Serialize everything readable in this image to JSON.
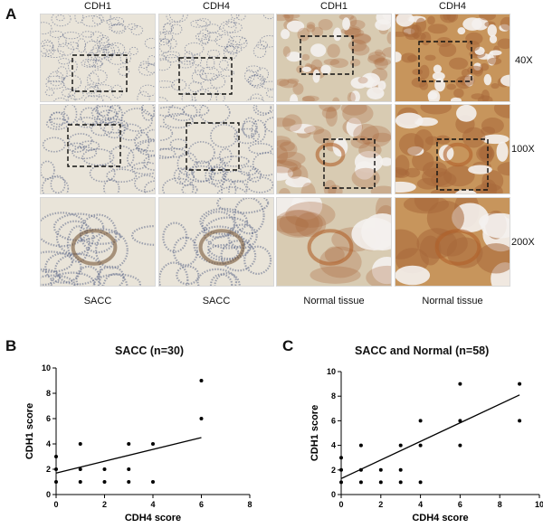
{
  "panels": {
    "a": "A",
    "b": "B",
    "c": "C"
  },
  "micrographs": {
    "columns": [
      "CDH1",
      "CDH4",
      "CDH1",
      "CDH4"
    ],
    "magnifications": [
      "40X",
      "100X",
      "200X"
    ],
    "samples": [
      "SACC",
      "SACC",
      "Normal tissue",
      "Normal tissue"
    ],
    "stain_colors": {
      "sacc_bg": "#e9e4d9",
      "sacc_cells": "#5d6888",
      "normal_cdh1_bg": "#d8cbb2",
      "normal_cdh4_bg": "#c7955c",
      "normal_cells": "#a8683a"
    }
  },
  "chart_data": [
    {
      "type": "scatter",
      "title": "SACC (n=30)",
      "xlabel": "CDH4 score",
      "ylabel": "CDH1 score",
      "xlim": [
        0,
        8
      ],
      "ylim": [
        0,
        10
      ],
      "xticks": [
        0,
        2,
        4,
        6,
        8
      ],
      "yticks": [
        0,
        2,
        4,
        6,
        8,
        10
      ],
      "points": [
        [
          0,
          1
        ],
        [
          0,
          2
        ],
        [
          0,
          3
        ],
        [
          1,
          1
        ],
        [
          1,
          2
        ],
        [
          1,
          4
        ],
        [
          2,
          1
        ],
        [
          2,
          2
        ],
        [
          3,
          1
        ],
        [
          3,
          2
        ],
        [
          3,
          4
        ],
        [
          4,
          1
        ],
        [
          4,
          4
        ],
        [
          6,
          6
        ],
        [
          6,
          9
        ]
      ],
      "fit_line": {
        "x": [
          0,
          6
        ],
        "y": [
          1.7,
          4.5
        ]
      }
    },
    {
      "type": "scatter",
      "title": "SACC and Normal (n=58)",
      "xlabel": "CDH4 score",
      "ylabel": "CDH1 score",
      "xlim": [
        0,
        10
      ],
      "ylim": [
        0,
        10
      ],
      "xticks": [
        0,
        2,
        4,
        6,
        8,
        10
      ],
      "yticks": [
        0,
        2,
        4,
        6,
        8,
        10
      ],
      "points": [
        [
          0,
          1
        ],
        [
          0,
          2
        ],
        [
          0,
          3
        ],
        [
          1,
          1
        ],
        [
          1,
          2
        ],
        [
          1,
          4
        ],
        [
          2,
          1
        ],
        [
          2,
          2
        ],
        [
          3,
          1
        ],
        [
          3,
          2
        ],
        [
          3,
          4
        ],
        [
          4,
          1
        ],
        [
          4,
          4
        ],
        [
          4,
          6
        ],
        [
          6,
          4
        ],
        [
          6,
          6
        ],
        [
          6,
          9
        ],
        [
          9,
          6
        ],
        [
          9,
          9
        ]
      ],
      "fit_line": {
        "x": [
          0,
          9
        ],
        "y": [
          1.3,
          8.1
        ]
      }
    }
  ]
}
